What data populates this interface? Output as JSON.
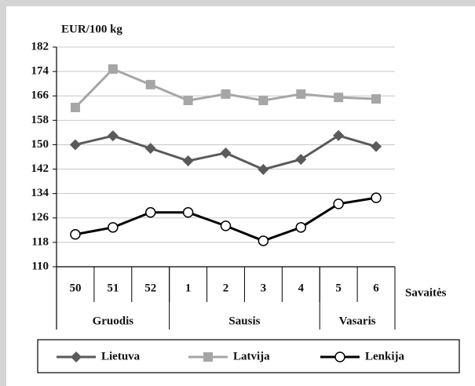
{
  "chart_data": {
    "type": "line",
    "y_label": "EUR/100 kg",
    "x_label": "Savaitės",
    "categories": [
      "50",
      "51",
      "52",
      "1",
      "2",
      "3",
      "4",
      "5",
      "6"
    ],
    "groups": [
      {
        "label": "Gruodis",
        "count": 3
      },
      {
        "label": "Sausis",
        "count": 4
      },
      {
        "label": "Vasaris",
        "count": 2
      }
    ],
    "series": [
      {
        "name": "Lietuva",
        "color": "#5a5a5a",
        "marker": "diamond",
        "values": [
          150.0,
          152.9,
          148.8,
          144.7,
          147.3,
          141.9,
          145.2,
          153.0,
          149.4
        ]
      },
      {
        "name": "Latvija",
        "color": "#a6a6a6",
        "marker": "square",
        "values": [
          162.2,
          174.8,
          169.7,
          164.5,
          166.6,
          164.5,
          166.6,
          165.5,
          165.0
        ]
      },
      {
        "name": "Lenkija",
        "color": "#000000",
        "marker": "circle",
        "values": [
          120.6,
          122.9,
          127.8,
          127.8,
          123.4,
          118.5,
          122.9,
          130.6,
          132.6
        ]
      }
    ],
    "ylim": [
      110,
      182
    ],
    "yticks": [
      110,
      118,
      126,
      134,
      142,
      150,
      158,
      166,
      174,
      182
    ],
    "grid": true,
    "legend": "bottom"
  }
}
